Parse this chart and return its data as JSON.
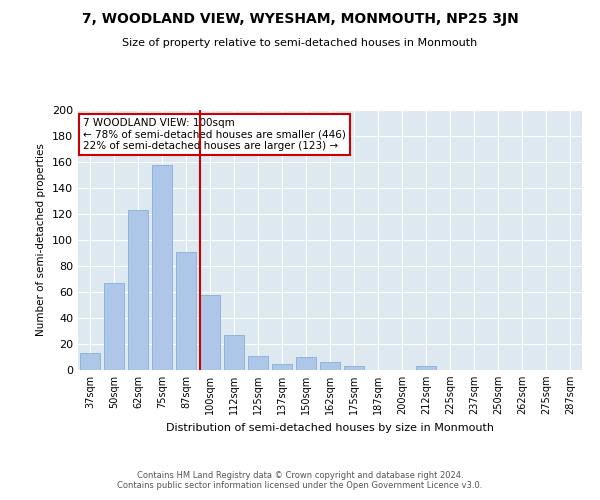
{
  "title": "7, WOODLAND VIEW, WYESHAM, MONMOUTH, NP25 3JN",
  "subtitle": "Size of property relative to semi-detached houses in Monmouth",
  "xlabel": "Distribution of semi-detached houses by size in Monmouth",
  "ylabel": "Number of semi-detached properties",
  "categories": [
    "37sqm",
    "50sqm",
    "62sqm",
    "75sqm",
    "87sqm",
    "100sqm",
    "112sqm",
    "125sqm",
    "137sqm",
    "150sqm",
    "162sqm",
    "175sqm",
    "187sqm",
    "200sqm",
    "212sqm",
    "225sqm",
    "237sqm",
    "250sqm",
    "262sqm",
    "275sqm",
    "287sqm"
  ],
  "values": [
    13,
    67,
    123,
    158,
    91,
    58,
    27,
    11,
    5,
    10,
    6,
    3,
    0,
    0,
    3,
    0,
    0,
    0,
    0,
    0,
    0
  ],
  "bar_color": "#aec6e8",
  "bar_edge_color": "#7aa8d4",
  "vline_color": "#cc0000",
  "annotation_title": "7 WOODLAND VIEW: 100sqm",
  "annotation_line1": "← 78% of semi-detached houses are smaller (446)",
  "annotation_line2": "22% of semi-detached houses are larger (123) →",
  "annotation_box_color": "#cc0000",
  "background_color": "#dde8f0",
  "footer1": "Contains HM Land Registry data © Crown copyright and database right 2024.",
  "footer2": "Contains public sector information licensed under the Open Government Licence v3.0.",
  "ylim": [
    0,
    200
  ],
  "yticks": [
    0,
    20,
    40,
    60,
    80,
    100,
    120,
    140,
    160,
    180,
    200
  ]
}
